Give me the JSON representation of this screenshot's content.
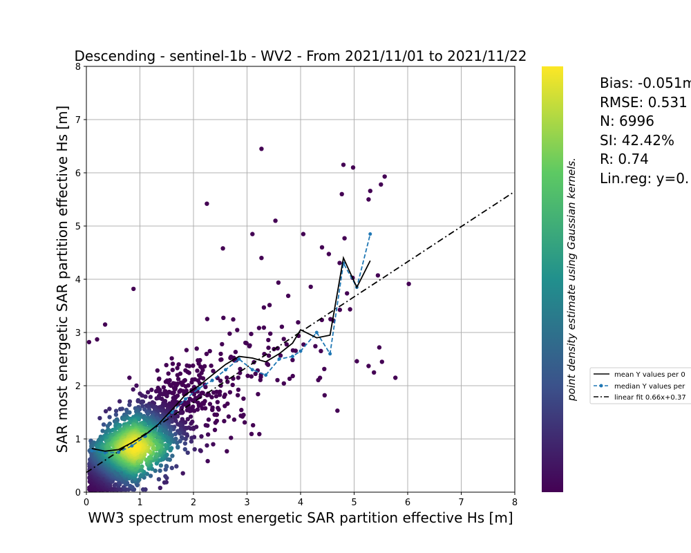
{
  "chart_data": {
    "type": "scatter",
    "title": "Descending - sentinel-1b - WV2 - From 2021/11/01 to 2021/11/22",
    "xlabel": "WW3 spectrum most energetic SAR partition effective Hs [m]",
    "ylabel": "SAR most energetic SAR partition effective Hs [m]",
    "xlim": [
      0,
      8
    ],
    "ylim": [
      0,
      8
    ],
    "xticks": [
      "0",
      "1",
      "2",
      "3",
      "4",
      "5",
      "6",
      "7",
      "8"
    ],
    "yticks": [
      "0",
      "1",
      "2",
      "3",
      "4",
      "5",
      "6",
      "7",
      "8"
    ],
    "grid": true,
    "colorbar_label": "point density estimate using Gaussian kernels.",
    "colormap": [
      "#440154",
      "#3b528b",
      "#21908d",
      "#5dc963",
      "#fde725"
    ],
    "stats": [
      "Bias: -0.051m",
      "RMSE: 0.531",
      "N: 6996",
      "SI: 42.42%",
      "R: 0.74",
      "Lin.reg: y=0."
    ],
    "legend_placement": "right",
    "legend": [
      {
        "label": "mean Y values per 0",
        "style": "solid",
        "color": "#000000"
      },
      {
        "label": "median Y values per",
        "style": "dashed-marker",
        "color": "#1f77b4"
      },
      {
        "label": "linear fit 0.66x+0.37",
        "style": "dashdot",
        "color": "#000000"
      }
    ],
    "series": [
      {
        "name": "mean Y values per 0",
        "x": [
          0.1,
          0.35,
          0.6,
          0.85,
          1.1,
          1.35,
          1.6,
          1.85,
          2.1,
          2.35,
          2.6,
          2.85,
          3.1,
          3.35,
          3.6,
          3.85,
          4.0,
          4.3,
          4.55,
          4.8,
          5.05,
          5.3
        ],
        "y": [
          0.82,
          0.77,
          0.8,
          0.93,
          1.08,
          1.28,
          1.55,
          1.83,
          2.0,
          2.2,
          2.4,
          2.55,
          2.52,
          2.45,
          2.6,
          2.8,
          3.05,
          2.9,
          2.95,
          4.4,
          3.85,
          4.35
        ]
      },
      {
        "name": "median Y values per",
        "x": [
          0.1,
          0.35,
          0.6,
          0.85,
          1.1,
          1.35,
          1.6,
          1.85,
          2.1,
          2.35,
          2.6,
          2.85,
          3.1,
          3.35,
          3.6,
          3.85,
          4.0,
          4.3,
          4.55,
          4.8,
          5.05,
          5.3
        ],
        "y": [
          0.78,
          0.74,
          0.75,
          0.87,
          1.05,
          1.28,
          1.5,
          1.75,
          1.95,
          2.1,
          2.3,
          2.5,
          2.3,
          2.2,
          2.5,
          2.55,
          2.65,
          3.0,
          2.6,
          4.3,
          3.85,
          4.85
        ]
      },
      {
        "name": "linear fit 0.66x+0.37",
        "slope": 0.66,
        "intercept": 0.37
      }
    ],
    "scatter_points": {
      "count": 6996,
      "center_x": 0.9,
      "center_y": 0.85,
      "outliers": [
        [
          3.27,
          6.45
        ],
        [
          4.8,
          6.15
        ],
        [
          4.98,
          6.1
        ],
        [
          5.57,
          5.93
        ],
        [
          5.5,
          5.78
        ],
        [
          5.3,
          5.66
        ],
        [
          5.27,
          5.5
        ],
        [
          4.77,
          5.6
        ],
        [
          2.25,
          5.42
        ],
        [
          3.53,
          5.1
        ],
        [
          3.27,
          4.4
        ],
        [
          4.05,
          4.85
        ],
        [
          4.4,
          4.6
        ],
        [
          4.82,
          4.77
        ],
        [
          0.88,
          3.82
        ],
        [
          5.47,
          2.72
        ],
        [
          5.77,
          2.15
        ],
        [
          5.05,
          2.46
        ],
        [
          5.37,
          2.25
        ],
        [
          5.52,
          2.45
        ],
        [
          5.27,
          2.37
        ],
        [
          0.05,
          2.82
        ],
        [
          0.2,
          2.87
        ],
        [
          0.35,
          3.15
        ],
        [
          2.55,
          4.58
        ],
        [
          3.1,
          4.85
        ]
      ]
    }
  }
}
